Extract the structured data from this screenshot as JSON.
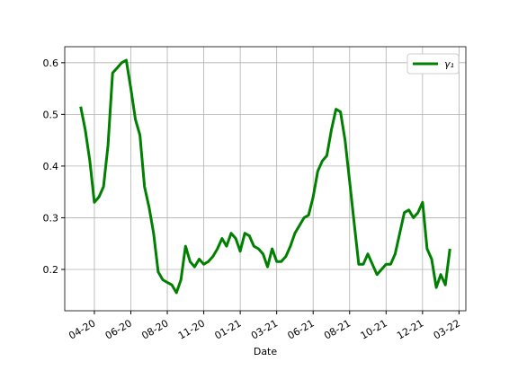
{
  "chart_data": {
    "type": "line",
    "xlabel": "Date",
    "categories": [
      null,
      null,
      null,
      null,
      null,
      null,
      "04-20",
      null,
      null,
      null,
      null,
      null,
      null,
      null,
      "06-20",
      null,
      null,
      null,
      null,
      null,
      null,
      null,
      "08-20",
      null,
      null,
      null,
      null,
      null,
      null,
      null,
      "11-20",
      null,
      null,
      null,
      null,
      null,
      null,
      null,
      "01-21",
      null,
      null,
      null,
      null,
      null,
      null,
      null,
      "03-21",
      null,
      null,
      null,
      null,
      null,
      null,
      null,
      "06-21",
      null,
      null,
      null,
      null,
      null,
      null,
      null,
      "08-21",
      null,
      null,
      null,
      null,
      null,
      null,
      null,
      "10-21",
      null,
      null,
      null,
      null,
      null,
      null,
      null,
      "12-21",
      null,
      null,
      null,
      null,
      null,
      null,
      null,
      "03-22",
      null
    ],
    "series": [
      {
        "name": "γ₁",
        "color": "#008000",
        "values": [
          null,
          null,
          null,
          0.515,
          0.47,
          0.41,
          0.33,
          0.34,
          0.36,
          0.44,
          0.58,
          0.59,
          0.6,
          0.605,
          0.55,
          0.49,
          0.46,
          0.36,
          0.32,
          0.27,
          0.195,
          0.18,
          0.175,
          0.17,
          0.155,
          0.18,
          0.245,
          0.215,
          0.205,
          0.22,
          0.21,
          0.215,
          0.225,
          0.24,
          0.26,
          0.245,
          0.27,
          0.26,
          0.235,
          0.27,
          0.265,
          0.245,
          0.24,
          0.23,
          0.205,
          0.24,
          0.215,
          0.215,
          0.225,
          0.245,
          0.27,
          0.285,
          0.3,
          0.305,
          0.34,
          0.39,
          0.41,
          0.42,
          0.47,
          0.51,
          0.505,
          0.45,
          0.37,
          0.29,
          0.21,
          0.21,
          0.23,
          0.21,
          0.19,
          0.2,
          0.21,
          0.21,
          0.23,
          0.27,
          0.31,
          0.315,
          0.3,
          0.31,
          0.33,
          0.24,
          0.22,
          0.165,
          0.19,
          0.17,
          0.24,
          null,
          null,
          null
        ]
      }
    ],
    "ylim": [
      0.12,
      0.631
    ],
    "yticks": [
      0.2,
      0.3,
      0.4,
      0.5,
      0.6
    ],
    "grid": true,
    "legend": "upper-right"
  }
}
